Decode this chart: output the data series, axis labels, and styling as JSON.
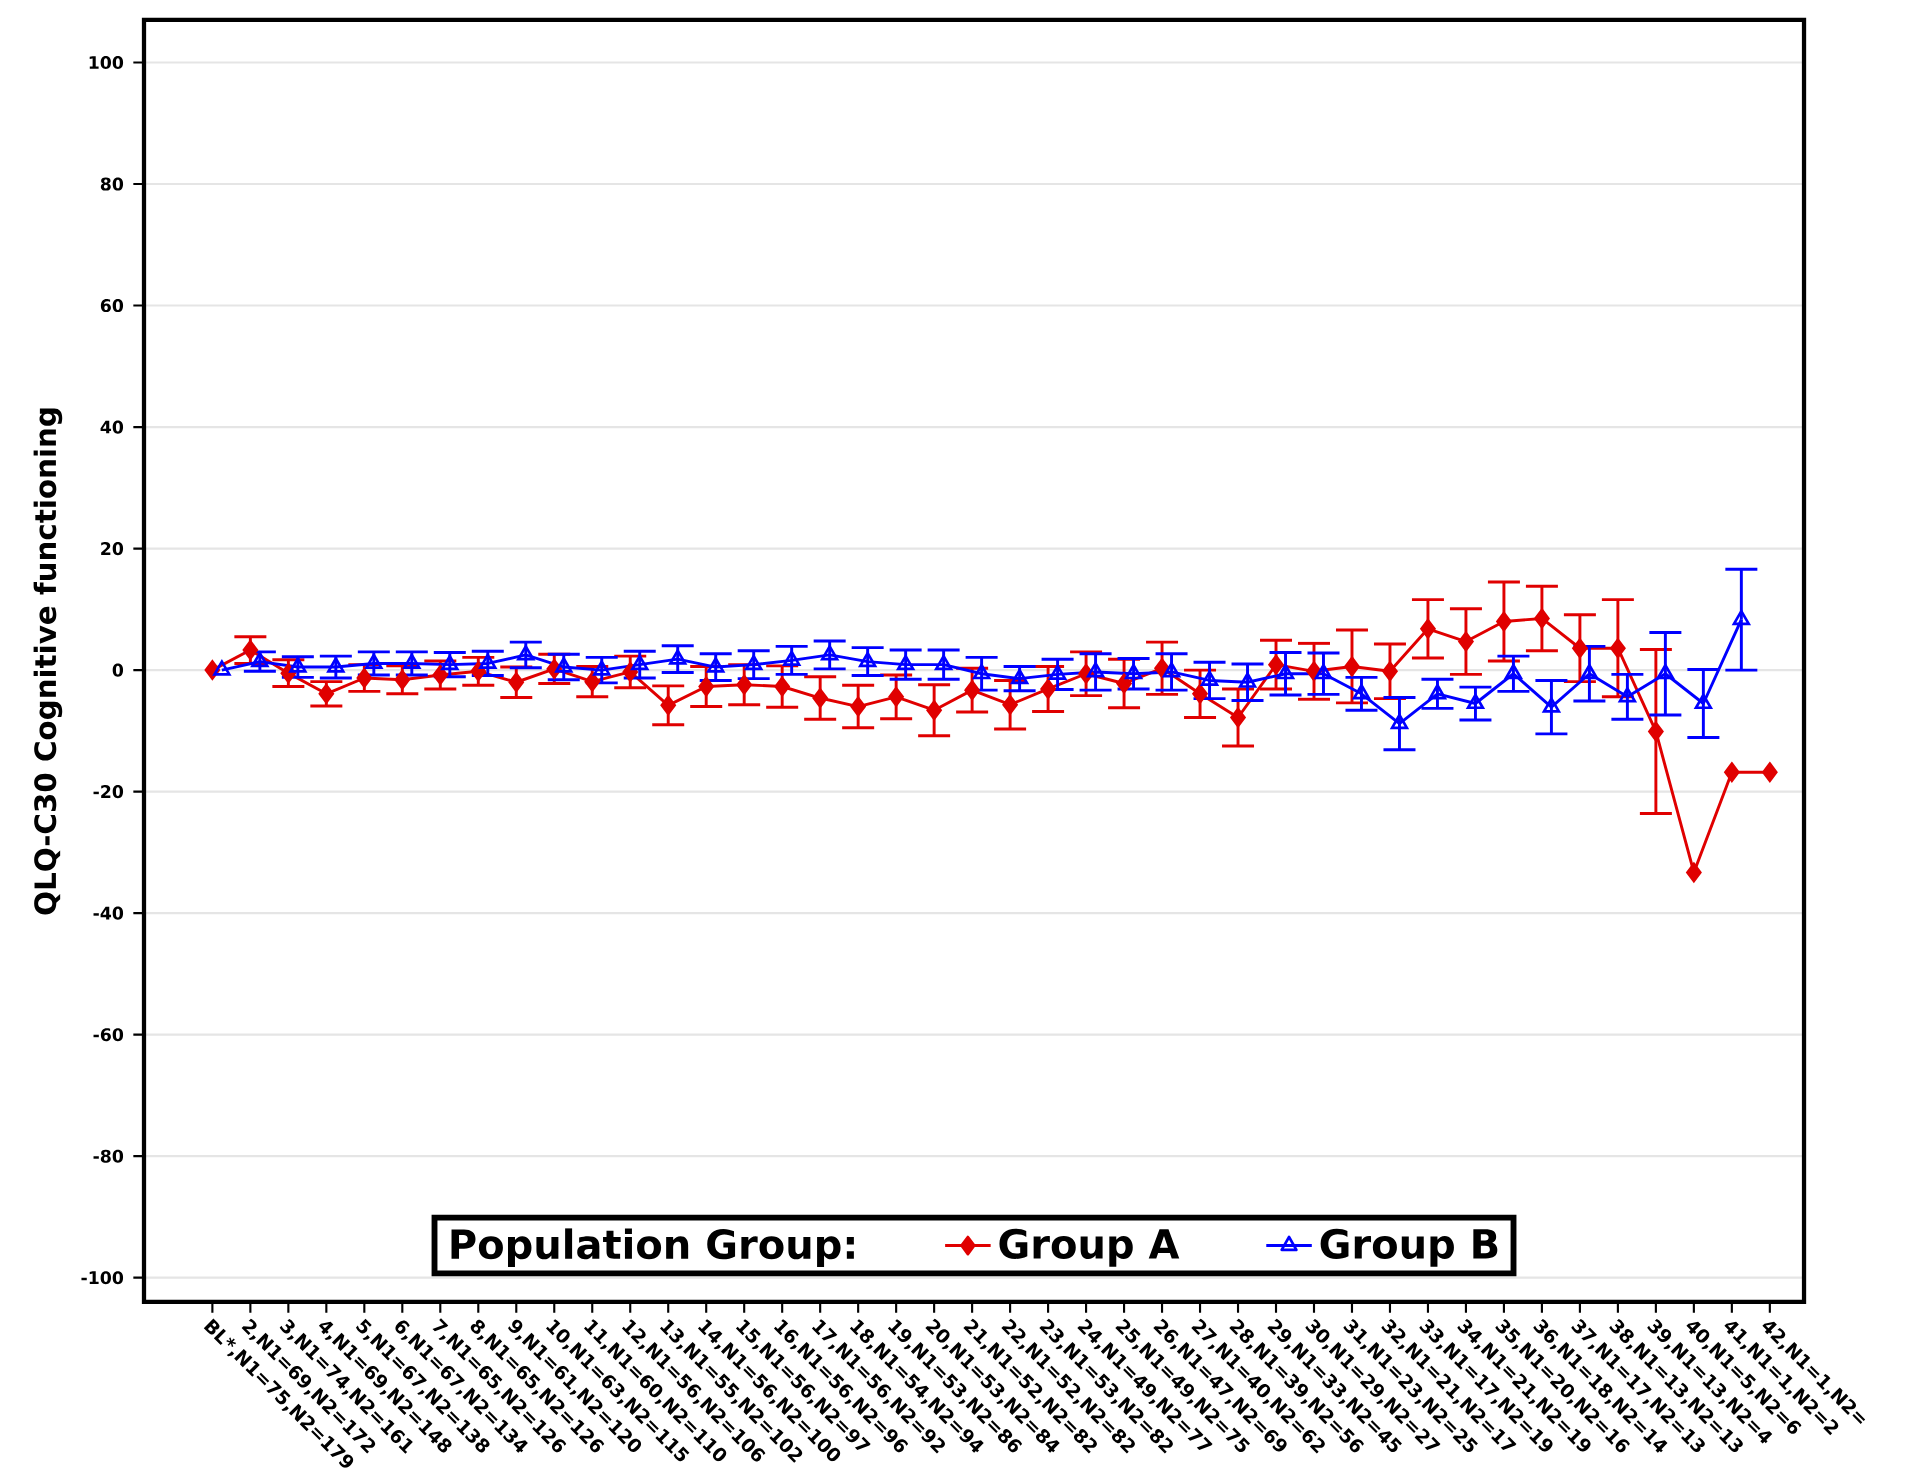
{
  "chart_data": {
    "type": "line",
    "ylabel": "QLQ-C30 Cognitive functioning",
    "legend_title": "Population Group:",
    "categories": [
      "BL*,N1=75,N2=179",
      "2,N1=69,N2=172",
      "3,N1=74,N2=161",
      "4,N1=69,N2=148",
      "5,N1=67,N2=138",
      "6,N1=67,N2=134",
      "7,N1=65,N2=126",
      "8,N1=65,N2=126",
      "9,N1=61,N2=120",
      "10,N1=63,N2=115",
      "11,N1=60,N2=110",
      "12,N1=56,N2=106",
      "13,N1=55,N2=102",
      "14,N1=56,N2=100",
      "15,N1=56,N2=97",
      "16,N1=56,N2=96",
      "17,N1=56,N2=92",
      "18,N1=54,N2=94",
      "19,N1=53,N2=86",
      "20,N1=53,N2=84",
      "21,N1=52,N2=82",
      "22,N1=52,N2=82",
      "23,N1=53,N2=82",
      "24,N1=49,N2=77",
      "25,N1=49,N2=75",
      "26,N1=47,N2=69",
      "27,N1=40,N2=62",
      "28,N1=39,N2=56",
      "29,N1=33,N2=45",
      "30,N1=29,N2=27",
      "31,N1=23,N2=25",
      "32,N1=21,N2=17",
      "33,N1=17,N2=19",
      "34,N1=21,N2=19",
      "35,N1=20,N2=16",
      "36,N1=18,N2=14",
      "37,N1=17,N2=13",
      "38,N1=13,N2=13",
      "39,N1=13,N2=4",
      "40,N1=5,N2=6",
      "41,N1=1,N2=2",
      "42,N1=1,N2="
    ],
    "series": [
      {
        "name": "Group A",
        "color": "#e00000",
        "marker": "diamond",
        "values": [
          0,
          3.3,
          -0.5,
          -3.9,
          -1.3,
          -1.6,
          -0.8,
          -0.2,
          -2,
          0.2,
          -1.9,
          -0.3,
          -5.8,
          -2.7,
          -2.4,
          -2.7,
          -4.6,
          -6,
          -4.4,
          -6.6,
          -3.3,
          -5.7,
          -3.1,
          -0.6,
          -2.2,
          0.3,
          -3.9,
          -7.8,
          0.9,
          -0.2,
          0.6,
          -0.2,
          6.8,
          4.7,
          8,
          8.5,
          3.6,
          3.6,
          -10.1,
          -33.3,
          -16.8,
          -16.8
        ],
        "errors": [
          null,
          2.2,
          2.2,
          2,
          2.2,
          2.3,
          2.3,
          2.3,
          2.5,
          2.4,
          2.5,
          2.6,
          3.2,
          3.3,
          3.3,
          3.4,
          3.5,
          3.5,
          3.6,
          4.2,
          3.6,
          4,
          3.7,
          3.6,
          4,
          4.3,
          3.9,
          4.7,
          4,
          4.6,
          6,
          4.5,
          4.8,
          5.4,
          6.5,
          5.3,
          5.5,
          8,
          13.5,
          null,
          null,
          null
        ]
      },
      {
        "name": "Group B",
        "color": "#0000ff",
        "marker": "triangle",
        "values": [
          0,
          1.4,
          0.5,
          0.5,
          1.1,
          1.1,
          0.9,
          1.1,
          2.5,
          0.5,
          0,
          0.9,
          1.8,
          0.5,
          0.9,
          1.6,
          2.5,
          1.4,
          0.9,
          0.9,
          -0.6,
          -1.4,
          -0.7,
          -0.3,
          -0.6,
          -0.3,
          -1.7,
          -2,
          -0.6,
          -0.6,
          -3.9,
          -8.8,
          -3.9,
          -5.5,
          -0.6,
          -6.1,
          -0.6,
          -4.4,
          -0.6,
          -5.5,
          8.3,
          null
        ],
        "errors": [
          null,
          1.6,
          1.7,
          1.8,
          1.9,
          1.9,
          2,
          2,
          2.1,
          2.1,
          2.1,
          2.2,
          2.2,
          2.2,
          2.3,
          2.3,
          2.3,
          2.3,
          2.4,
          2.4,
          2.7,
          2,
          2.5,
          3,
          2.5,
          3,
          3,
          3,
          3.5,
          3.4,
          2.7,
          4.3,
          2.4,
          2.7,
          2.9,
          4.4,
          4.5,
          3.7,
          6.8,
          5.6,
          8.3,
          null
        ]
      }
    ],
    "ylim": [
      -104,
      107
    ],
    "yticks": [
      -100,
      -80,
      -60,
      -40,
      -20,
      0,
      20,
      40,
      60,
      80,
      100
    ],
    "grid": "y",
    "legend": "bottom",
    "line_style": "solid"
  }
}
